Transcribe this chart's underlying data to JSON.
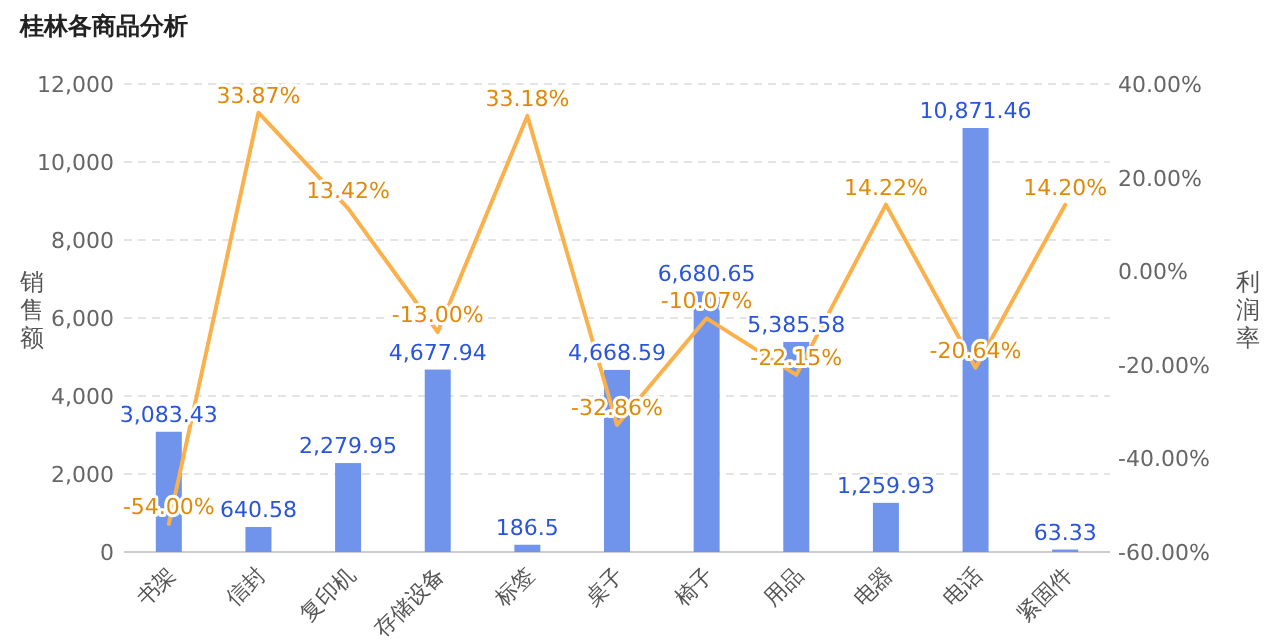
{
  "chart_data": {
    "type": "bar",
    "title": "桂林各商品分析",
    "ylabel": "销售额",
    "y2label": "利润率",
    "categories": [
      "书架",
      "信封",
      "复印机",
      "存储设备",
      "标签",
      "桌子",
      "椅子",
      "用品",
      "电器",
      "电话",
      "紧固件"
    ],
    "series": [
      {
        "color": "#7094eb",
        "values": [
          3083.43,
          640.58,
          2279.95,
          4677.94,
          186.5,
          4668.59,
          6680.65,
          5385.58,
          1259.93,
          10871.46,
          63.33
        ],
        "value_labels": [
          "3,083.43",
          "640.58",
          "2,279.95",
          "4,677.94",
          "186.5",
          "4,668.59",
          "6,680.65",
          "5,385.58",
          "1,259.93",
          "10,871.46",
          "63.33"
        ]
      },
      {
        "type": "line",
        "axis": "y2",
        "color": "#fab14c",
        "values": [
          -54.0,
          33.87,
          13.42,
          -13.0,
          33.18,
          -32.86,
          -10.07,
          -22.15,
          14.22,
          -20.64,
          14.2
        ],
        "value_labels": [
          "-54.00%",
          "33.87%",
          "13.42%",
          "-13.00%",
          "33.18%",
          "-32.86%",
          "-10.07%",
          "-22.15%",
          "14.22%",
          "-20.64%",
          "14.20%"
        ]
      }
    ],
    "ylim": [
      0,
      12000
    ],
    "yticks": [
      0,
      {
        "value": 2000,
        "label": "2,000"
      },
      {
        "value": 4000,
        "label": "4,000"
      },
      {
        "value": 6000,
        "label": "6,000"
      },
      {
        "value": 8000,
        "label": "8,000"
      },
      {
        "value": 10000,
        "label": "10,000"
      },
      {
        "value": 12000,
        "label": "12,000"
      }
    ],
    "y2lim": [
      -60,
      40
    ],
    "y2ticks": [
      {
        "value": -60,
        "label": "-60.00%"
      },
      {
        "value": -40,
        "label": "-40.00%"
      },
      {
        "value": -20,
        "label": "-20.00%"
      },
      {
        "value": 0,
        "label": "0.00%"
      },
      {
        "value": 20,
        "label": "20.00%"
      },
      {
        "value": 40,
        "label": "40.00%"
      }
    ],
    "grid": "y"
  }
}
